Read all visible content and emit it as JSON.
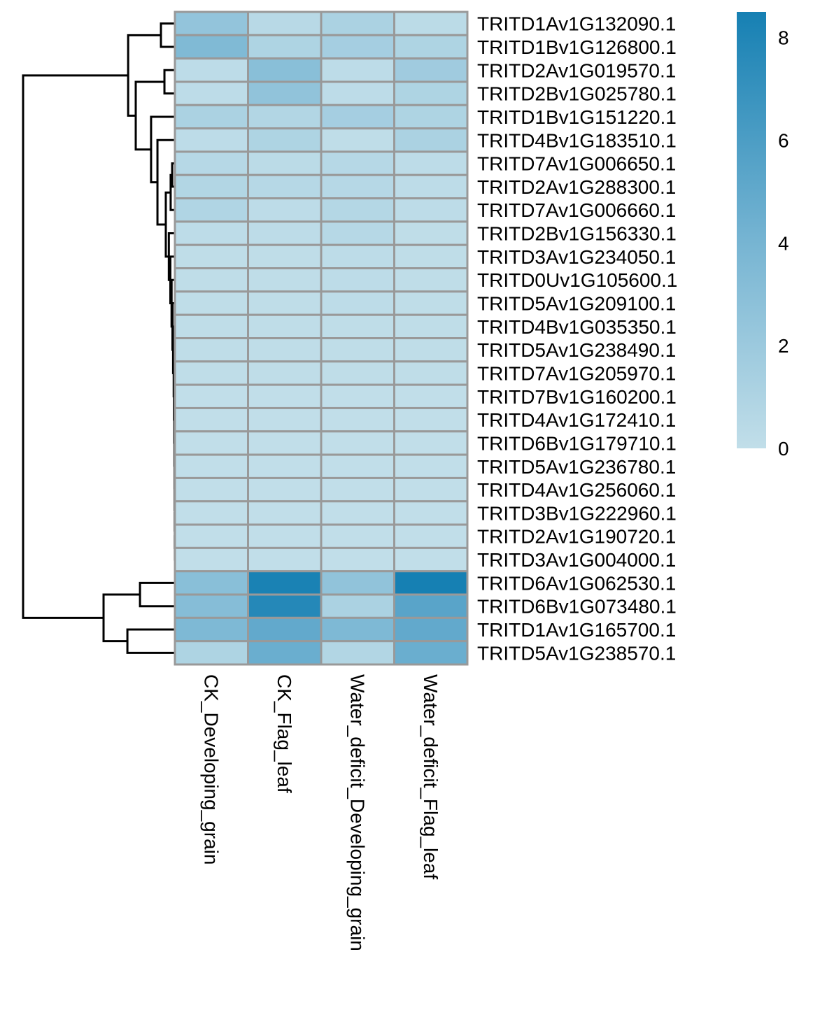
{
  "chart_data": {
    "type": "heatmap",
    "title": "",
    "columns": [
      "CK_Developing_grain",
      "CK_Flag_leaf",
      "Water_deficit_Developing_grain",
      "Water_deficit_Flag_leaf"
    ],
    "rows": [
      "TRITD1Av1G132090.1",
      "TRITD1Bv1G126800.1",
      "TRITD2Av1G019570.1",
      "TRITD2Bv1G025780.1",
      "TRITD1Bv1G151220.1",
      "TRITD4Bv1G183510.1",
      "TRITD7Av1G006650.1",
      "TRITD2Av1G288300.1",
      "TRITD7Av1G006660.1",
      "TRITD2Bv1G156330.1",
      "TRITD3Av1G234050.1",
      "TRITD0Uv1G105600.1",
      "TRITD5Av1G209100.1",
      "TRITD4Bv1G035350.1",
      "TRITD5Av1G238490.1",
      "TRITD7Av1G205970.1",
      "TRITD7Bv1G160200.1",
      "TRITD4Av1G172410.1",
      "TRITD6Bv1G179710.1",
      "TRITD5Av1G236780.1",
      "TRITD4Av1G256060.1",
      "TRITD3Bv1G222960.1",
      "TRITD2Av1G190720.1",
      "TRITD3Av1G004000.1",
      "TRITD6Av1G062530.1",
      "TRITD6Bv1G073480.1",
      "TRITD1Av1G165700.1",
      "TRITD5Av1G238570.1"
    ],
    "values": [
      [
        2.5,
        0.5,
        1.2,
        0.3
      ],
      [
        3.5,
        1.0,
        1.5,
        1.0
      ],
      [
        0.2,
        3.0,
        0.2,
        1.8
      ],
      [
        0.2,
        2.6,
        0.2,
        1.0
      ],
      [
        1.2,
        0.8,
        1.5,
        1.0
      ],
      [
        0.2,
        1.0,
        0.1,
        1.2
      ],
      [
        0.6,
        0.3,
        0.6,
        0.2
      ],
      [
        0.8,
        0.6,
        0.6,
        0.2
      ],
      [
        0.9,
        0.2,
        0.7,
        0.2
      ],
      [
        0.2,
        0.2,
        0.6,
        0.1
      ],
      [
        0.1,
        0.1,
        0.2,
        0.1
      ],
      [
        0.1,
        0.1,
        0.2,
        0.1
      ],
      [
        0.1,
        0.1,
        0.2,
        0.1
      ],
      [
        0.1,
        0.1,
        0.1,
        0.1
      ],
      [
        0.1,
        0.1,
        0.1,
        0.1
      ],
      [
        0.1,
        0.1,
        0.1,
        0.1
      ],
      [
        0.0,
        0.0,
        0.0,
        0.0
      ],
      [
        0.0,
        0.0,
        0.0,
        0.0
      ],
      [
        0.0,
        0.0,
        0.0,
        0.0
      ],
      [
        0.0,
        0.0,
        0.0,
        0.0
      ],
      [
        0.0,
        0.0,
        0.0,
        0.0
      ],
      [
        0.0,
        0.0,
        0.0,
        0.0
      ],
      [
        0.0,
        0.0,
        0.0,
        0.0
      ],
      [
        0.0,
        0.0,
        0.0,
        0.0
      ],
      [
        3.0,
        8.3,
        2.6,
        8.5
      ],
      [
        3.2,
        7.8,
        1.2,
        5.4
      ],
      [
        3.6,
        5.0,
        3.6,
        5.0
      ],
      [
        1.0,
        4.6,
        0.8,
        4.6
      ]
    ],
    "color_scale": {
      "range": [
        0,
        8.5
      ],
      "colors": [
        "#c1dee9",
        "#72b2d1",
        "#1680b3"
      ]
    },
    "legend": {
      "ticks": [
        0,
        2,
        4,
        6,
        8
      ],
      "labels": [
        "0",
        "2",
        "4",
        "6",
        "8"
      ],
      "placement": "right"
    },
    "row_dendrogram": {
      "h": 10,
      "c": [
        {
          "h": 3.08,
          "c": [
            {
              "h": 0.92,
              "c": [
                0,
                1
              ]
            },
            {
              "h": 2.58,
              "c": [
                {
                  "h": 0.69,
                  "c": [
                    2,
                    3
                  ]
                },
                {
                  "h": 1.57,
                  "c": [
                    4,
                    {
                      "h": 1.15,
                      "c": [
                        5,
                        {
                          "h": 0.6,
                          "c": [
                            {
                              "h": 0.28,
                              "c": [
                                {
                                  "h": 0.18,
                                  "c": [
                                    6,
                                    7
                                  ]
                                },
                                8
                              ]
                            },
                            {
                              "h": 0.4,
                              "c": [
                                9,
                                {
                                  "h": 0.3,
                                  "c": [
                                    10,
                                    {
                                      "h": 0.22,
                                      "c": [
                                        11,
                                        {
                                          "h": 0.16,
                                          "c": [
                                            12,
                                            {
                                              "h": 0.12,
                                              "c": [
                                                13,
                                                {
                                                  "h": 0.08,
                                                  "c": [
                                                    14,
                                                    {
                                                      "h": 0.06,
                                                      "c": [
                                                        15,
                                                        {
                                                          "h": 0.04,
                                                          "c": [
                                                            16,
                                                            {
                                                              "h": 0.03,
                                                              "c": [
                                                                17,
                                                                {
                                                                  "h": 0.02,
                                                                  "c": [
                                                                    18,
                                                                    {
                                                                      "h": 0.015,
                                                                      "c": [
                                                                        19,
                                                                        {
                                                                          "h": 0.01,
                                                                          "c": [
                                                                            20,
                                                                            {
                                                                              "h": 0.008,
                                                                              "c": [
                                                                                21,
                                                                                {
                                                                                  "h": 0.005,
                                                                                  "c": [
                                                                                    22,
                                                                                    23
                                                                                  ]
                                                                                }
                                                                              ]
                                                                            }
                                                                          ]
                                                                        }
                                                                      ]
                                                                    }
                                                                  ]
                                                                }
                                                              ]
                                                            }
                                                          ]
                                                        }
                                                      ]
                                                    }
                                                  ]
                                                }
                                              ]
                                            }
                                          ]
                                        }
                                      ]
                                    }
                                  ]
                                }
                              ]
                            }
                          ]
                        }
                      ]
                    }
                  ]
                }
              ]
            }
          ]
        },
        {
          "h": 4.7,
          "c": [
            {
              "h": 2.3,
              "c": [
                24,
                25
              ]
            },
            {
              "h": 3.13,
              "c": [
                26,
                27
              ]
            }
          ]
        }
      ]
    }
  }
}
